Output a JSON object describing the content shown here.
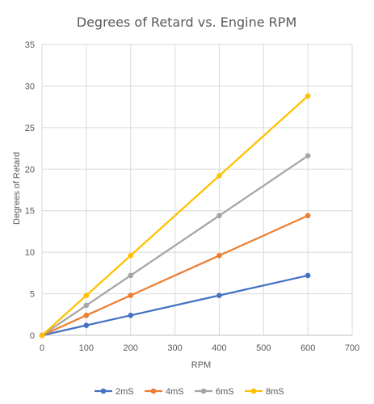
{
  "chart_data": {
    "type": "line",
    "title": "Degrees of Retard vs. Engine RPM",
    "xlabel": "RPM",
    "ylabel": "Degrees of Retard",
    "xlim": [
      0,
      700
    ],
    "ylim": [
      0,
      35
    ],
    "xticks": [
      0,
      100,
      200,
      300,
      400,
      500,
      600,
      700
    ],
    "yticks": [
      0,
      5,
      10,
      15,
      20,
      25,
      30,
      35
    ],
    "grid": {
      "horizontal": true,
      "vertical": true
    },
    "legend_position": "bottom",
    "series": [
      {
        "name": "2mS",
        "color": "#4472C4",
        "x": [
          0,
          100,
          200,
          400,
          600
        ],
        "y": [
          0,
          1.2,
          2.4,
          4.8,
          7.2
        ]
      },
      {
        "name": "4mS",
        "color": "#ED7D31",
        "x": [
          0,
          100,
          200,
          400,
          600
        ],
        "y": [
          0,
          2.4,
          4.8,
          9.6,
          14.4
        ]
      },
      {
        "name": "6mS",
        "color": "#A5A5A5",
        "x": [
          0,
          100,
          200,
          400,
          600
        ],
        "y": [
          0,
          3.6,
          7.2,
          14.4,
          21.6
        ]
      },
      {
        "name": "8mS",
        "color": "#FFC000",
        "x": [
          0,
          100,
          200,
          400,
          600
        ],
        "y": [
          0,
          4.8,
          9.6,
          19.2,
          28.8
        ]
      }
    ]
  }
}
